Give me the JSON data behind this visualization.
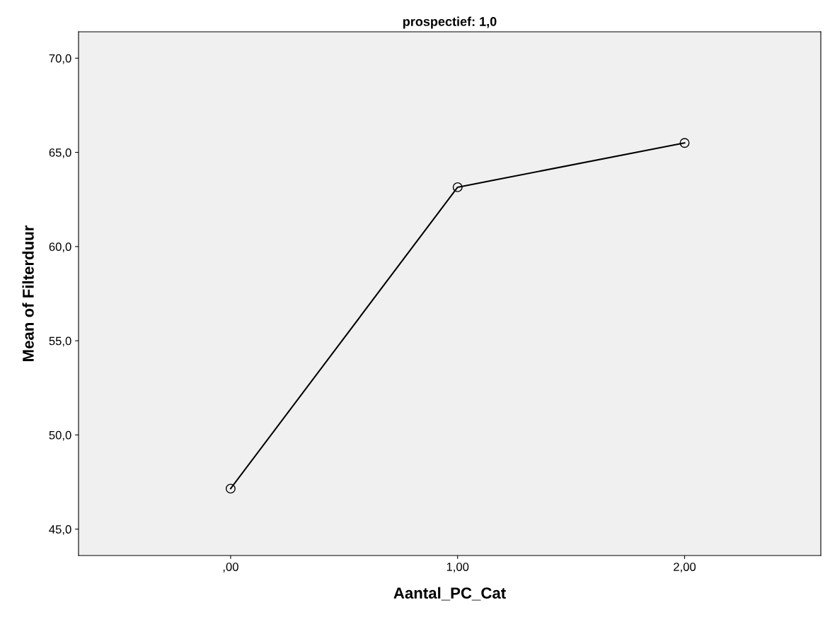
{
  "chart_data": {
    "type": "line",
    "title": "prospectief: 1,0",
    "xlabel": "Aantal_PC_Cat",
    "ylabel": "Mean of Filterduur",
    "x": [
      0,
      1,
      2
    ],
    "series": [
      {
        "color": "#000000",
        "values": [
          47.15,
          63.15,
          65.5
        ]
      }
    ],
    "xlim": [
      -0.67,
      2.6
    ],
    "xticks": [
      {
        "value": 0,
        "label": ",00"
      },
      {
        "value": 1,
        "label": "1,00"
      },
      {
        "value": 2,
        "label": "2,00"
      }
    ],
    "ylim": [
      43.6,
      71.4
    ],
    "yticks": [
      {
        "value": 45,
        "label": "45,0"
      },
      {
        "value": 50,
        "label": "50,0"
      },
      {
        "value": 55,
        "label": "55,0"
      },
      {
        "value": 60,
        "label": "60,0"
      },
      {
        "value": 65,
        "label": "65,0"
      },
      {
        "value": 70,
        "label": "70,0"
      }
    ],
    "marker": "circle",
    "line_style": "solid",
    "grid": false
  }
}
